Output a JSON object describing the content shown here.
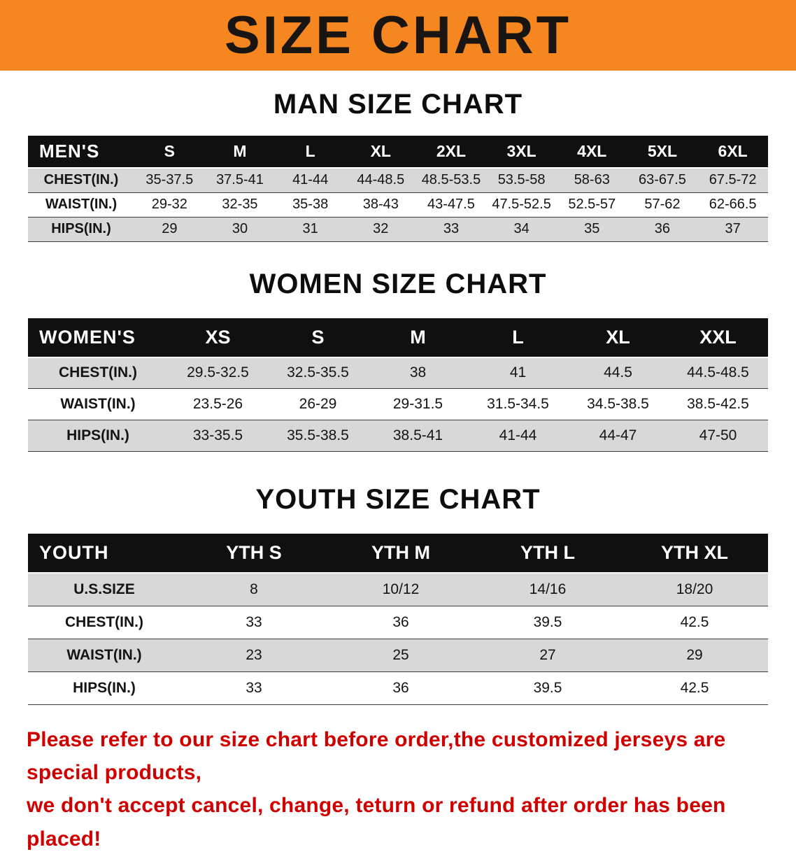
{
  "banner": {
    "title": "SIZE CHART",
    "background_color": "#F6861F",
    "text_color": "#191512"
  },
  "sections": [
    {
      "heading": "MAN SIZE CHART",
      "corner": "MEN'S",
      "columns": [
        "S",
        "M",
        "L",
        "XL",
        "2XL",
        "3XL",
        "4XL",
        "5XL",
        "6XL"
      ],
      "rows": [
        {
          "label": "CHEST(IN.)",
          "values": [
            "35-37.5",
            "37.5-41",
            "41-44",
            "44-48.5",
            "48.5-53.5",
            "53.5-58",
            "58-63",
            "63-67.5",
            "67.5-72"
          ]
        },
        {
          "label": "WAIST(IN.)",
          "values": [
            "29-32",
            "32-35",
            "35-38",
            "38-43",
            "43-47.5",
            "47.5-52.5",
            "52.5-57",
            "57-62",
            "62-66.5"
          ]
        },
        {
          "label": "HIPS(IN.)",
          "values": [
            "29",
            "30",
            "31",
            "32",
            "33",
            "34",
            "35",
            "36",
            "37"
          ]
        }
      ]
    },
    {
      "heading": "WOMEN SIZE CHART",
      "corner": "WOMEN'S",
      "columns": [
        "XS",
        "S",
        "M",
        "L",
        "XL",
        "XXL"
      ],
      "rows": [
        {
          "label": "CHEST(IN.)",
          "values": [
            "29.5-32.5",
            "32.5-35.5",
            "38",
            "41",
            "44.5",
            "44.5-48.5"
          ]
        },
        {
          "label": "WAIST(IN.)",
          "values": [
            "23.5-26",
            "26-29",
            "29-31.5",
            "31.5-34.5",
            "34.5-38.5",
            "38.5-42.5"
          ]
        },
        {
          "label": "HIPS(IN.)",
          "values": [
            "33-35.5",
            "35.5-38.5",
            "38.5-41",
            "41-44",
            "44-47",
            "47-50"
          ]
        }
      ]
    },
    {
      "heading": "YOUTH SIZE CHART",
      "corner": "YOUTH",
      "columns": [
        "YTH S",
        "YTH M",
        "YTH L",
        "YTH XL"
      ],
      "rows": [
        {
          "label": "U.S.SIZE",
          "values": [
            "8",
            "10/12",
            "14/16",
            "18/20"
          ]
        },
        {
          "label": "CHEST(IN.)",
          "values": [
            "33",
            "36",
            "39.5",
            "42.5"
          ]
        },
        {
          "label": "WAIST(IN.)",
          "values": [
            "23",
            "25",
            "27",
            "29"
          ]
        },
        {
          "label": "HIPS(IN.)",
          "values": [
            "33",
            "36",
            "39.5",
            "42.5"
          ]
        }
      ]
    }
  ],
  "footer": {
    "line1": "Please refer to our size chart before order,the customized jerseys are special products,",
    "line2": "we don't accept cancel, change, teturn or refund after order has been placed!",
    "text_color": "#D10000"
  }
}
